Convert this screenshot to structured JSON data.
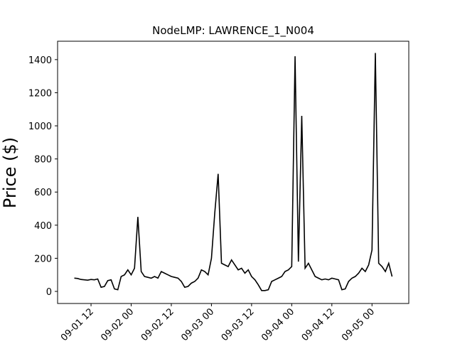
{
  "chart_data": {
    "type": "line",
    "title": "NodeLMP: LAWRENCE_1_N004",
    "y_label": "Price ($)",
    "x": [
      "09-01 07",
      "09-01 08",
      "09-01 09",
      "09-01 10",
      "09-01 11",
      "09-01 12",
      "09-01 13",
      "09-01 14",
      "09-01 15",
      "09-01 16",
      "09-01 17",
      "09-01 18",
      "09-01 19",
      "09-01 20",
      "09-01 21",
      "09-01 22",
      "09-01 23",
      "09-02 00",
      "09-02 01",
      "09-02 02",
      "09-02 03",
      "09-02 04",
      "09-02 05",
      "09-02 06",
      "09-02 07",
      "09-02 08",
      "09-02 09",
      "09-02 10",
      "09-02 11",
      "09-02 12",
      "09-02 13",
      "09-02 14",
      "09-02 15",
      "09-02 16",
      "09-02 17",
      "09-02 18",
      "09-02 19",
      "09-02 20",
      "09-02 21",
      "09-02 22",
      "09-02 23",
      "09-03 00",
      "09-03 01",
      "09-03 02",
      "09-03 03",
      "09-03 04",
      "09-03 05",
      "09-03 06",
      "09-03 07",
      "09-03 08",
      "09-03 09",
      "09-03 10",
      "09-03 11",
      "09-03 12",
      "09-03 13",
      "09-03 14",
      "09-03 15",
      "09-03 16",
      "09-03 17",
      "09-03 18",
      "09-03 19",
      "09-03 20",
      "09-03 21",
      "09-03 22",
      "09-03 23",
      "09-04 00",
      "09-04 01",
      "09-04 02",
      "09-04 03",
      "09-04 04",
      "09-04 05",
      "09-04 06",
      "09-04 07",
      "09-04 08",
      "09-04 09",
      "09-04 10",
      "09-04 11",
      "09-04 12",
      "09-04 13",
      "09-04 14",
      "09-04 15",
      "09-04 16",
      "09-04 17",
      "09-04 18",
      "09-04 19",
      "09-04 20",
      "09-04 21",
      "09-04 22",
      "09-04 23",
      "09-05 00",
      "09-05 01",
      "09-05 02",
      "09-05 03",
      "09-05 04",
      "09-05 05",
      "09-05 06"
    ],
    "series": [
      {
        "color": "#000000",
        "values": [
          80,
          78,
          72,
          70,
          68,
          72,
          70,
          75,
          25,
          30,
          65,
          70,
          15,
          10,
          90,
          100,
          130,
          100,
          140,
          450,
          120,
          90,
          85,
          80,
          90,
          80,
          120,
          110,
          100,
          90,
          85,
          80,
          60,
          25,
          30,
          50,
          60,
          80,
          130,
          120,
          100,
          200,
          475,
          710,
          170,
          160,
          150,
          190,
          160,
          130,
          140,
          110,
          130,
          90,
          70,
          40,
          5,
          5,
          10,
          60,
          70,
          80,
          90,
          120,
          130,
          150,
          1420,
          180,
          1060,
          140,
          170,
          130,
          90,
          80,
          70,
          75,
          70,
          80,
          75,
          70,
          10,
          15,
          60,
          80,
          90,
          110,
          140,
          120,
          160,
          250,
          1440,
          170,
          150,
          120,
          170,
          90
        ]
      }
    ],
    "xlim": [
      "09-01 02",
      "09-05 11"
    ],
    "xticks": [
      "09-01 12",
      "09-02 00",
      "09-02 12",
      "09-03 00",
      "09-03 12",
      "09-04 00",
      "09-04 12",
      "09-05 00"
    ],
    "ylim": [
      -73,
      1511
    ],
    "yticks": [
      0,
      200,
      400,
      600,
      800,
      1000,
      1200,
      1400
    ]
  }
}
